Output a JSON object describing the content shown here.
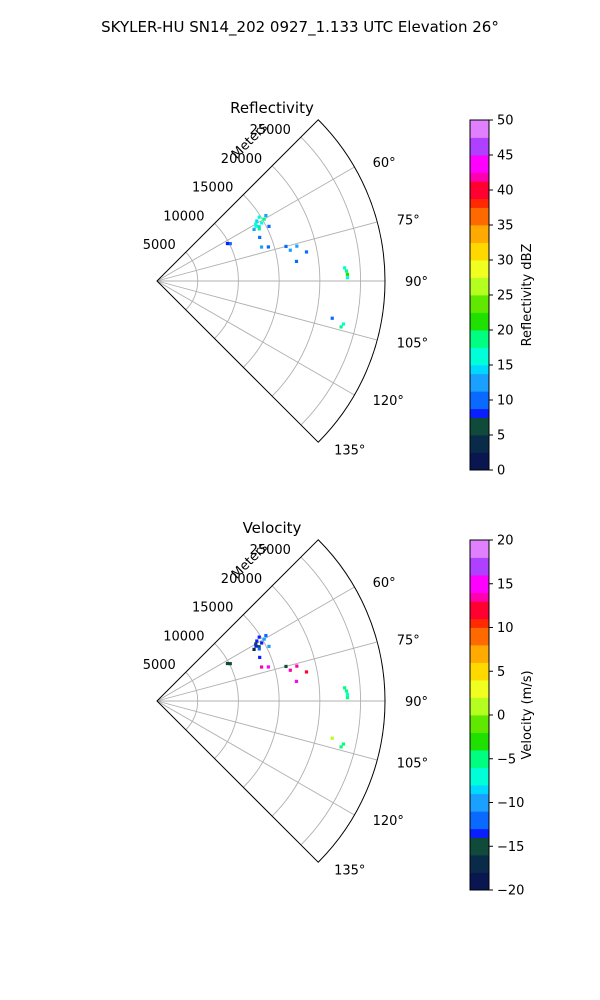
{
  "figure_title": "SKYLER-HU  SN14_202  0927_1.133 UTC Elevation 26°",
  "chart_data": [
    {
      "type": "scatter",
      "projection": "polar-sector",
      "title": "Reflectivity",
      "range_label": "Meters",
      "range_ticks": [
        5000,
        10000,
        15000,
        20000,
        25000
      ],
      "range_tick_labels": [
        "5000",
        "10000",
        "15000",
        "20000",
        "25000"
      ],
      "range_limit": [
        0,
        28000
      ],
      "azimuth_range_deg": [
        45,
        135
      ],
      "azimuth_ticks": [
        60,
        75,
        90,
        105,
        120,
        135
      ],
      "azimuth_tick_labels": [
        "60°",
        "75°",
        "90°",
        "105°",
        "120°",
        "135°"
      ],
      "grid": true,
      "colorbar": {
        "label": "Reflectivity dBZ",
        "range": [
          0,
          50
        ],
        "ticks": [
          0,
          5,
          10,
          15,
          20,
          25,
          30,
          35,
          40,
          45,
          50
        ],
        "tick_labels": [
          "0",
          "5",
          "10",
          "15",
          "20",
          "25",
          "30",
          "35",
          "40",
          "45",
          "50"
        ]
      },
      "points": [
        {
          "az": 58,
          "r": 14800,
          "v": 16
        },
        {
          "az": 59,
          "r": 14300,
          "v": 15
        },
        {
          "az": 60,
          "r": 14000,
          "v": 17
        },
        {
          "az": 61,
          "r": 13900,
          "v": 16
        },
        {
          "az": 62,
          "r": 14200,
          "v": 14
        },
        {
          "az": 63,
          "r": 14100,
          "v": 18
        },
        {
          "az": 60,
          "r": 15200,
          "v": 19
        },
        {
          "az": 61,
          "r": 14700,
          "v": 16
        },
        {
          "az": 62,
          "r": 13500,
          "v": 12
        },
        {
          "az": 59,
          "r": 15600,
          "v": 13
        },
        {
          "az": 64,
          "r": 15300,
          "v": 10
        },
        {
          "az": 67,
          "r": 13700,
          "v": 9
        },
        {
          "az": 63,
          "r": 10100,
          "v": 10
        },
        {
          "az": 62,
          "r": 9800,
          "v": 8
        },
        {
          "az": 72,
          "r": 13500,
          "v": 11
        },
        {
          "az": 73,
          "r": 14300,
          "v": 10
        },
        {
          "az": 75,
          "r": 16400,
          "v": 10
        },
        {
          "az": 76,
          "r": 17700,
          "v": 11
        },
        {
          "az": 77,
          "r": 16800,
          "v": 11
        },
        {
          "az": 79,
          "r": 18700,
          "v": 10
        },
        {
          "az": 82,
          "r": 17300,
          "v": 9
        },
        {
          "az": 86,
          "r": 23100,
          "v": 17
        },
        {
          "az": 87,
          "r": 23300,
          "v": 18
        },
        {
          "az": 88,
          "r": 23400,
          "v": 20
        },
        {
          "az": 89,
          "r": 23400,
          "v": 17
        },
        {
          "az": 102,
          "r": 22000,
          "v": 10
        },
        {
          "az": 103,
          "r": 23500,
          "v": 17
        },
        {
          "az": 104,
          "r": 23300,
          "v": 18
        }
      ]
    },
    {
      "type": "scatter",
      "projection": "polar-sector",
      "title": "Velocity",
      "range_label": "Meters",
      "range_ticks": [
        5000,
        10000,
        15000,
        20000,
        25000
      ],
      "range_tick_labels": [
        "5000",
        "10000",
        "15000",
        "20000",
        "25000"
      ],
      "range_limit": [
        0,
        28000
      ],
      "azimuth_range_deg": [
        45,
        135
      ],
      "azimuth_ticks": [
        60,
        75,
        90,
        105,
        120,
        135
      ],
      "azimuth_tick_labels": [
        "60°",
        "75°",
        "90°",
        "105°",
        "120°",
        "135°"
      ],
      "grid": true,
      "colorbar": {
        "label": "Velocity (m/s)",
        "range": [
          -20,
          20
        ],
        "ticks": [
          -20,
          -15,
          -10,
          -5,
          0,
          5,
          10,
          15,
          20
        ],
        "tick_labels": [
          "−20",
          "−15",
          "−10",
          "−5",
          "0",
          "5",
          "10",
          "15",
          "20"
        ]
      },
      "points": [
        {
          "az": 58,
          "r": 14800,
          "v": -13
        },
        {
          "az": 59,
          "r": 14300,
          "v": -14
        },
        {
          "az": 60,
          "r": 14000,
          "v": -15
        },
        {
          "az": 61,
          "r": 13900,
          "v": -13
        },
        {
          "az": 62,
          "r": 14200,
          "v": -16
        },
        {
          "az": 63,
          "r": 14100,
          "v": -12
        },
        {
          "az": 60,
          "r": 15200,
          "v": -11
        },
        {
          "az": 61,
          "r": 14700,
          "v": -14
        },
        {
          "az": 62,
          "r": 13500,
          "v": -17
        },
        {
          "az": 59,
          "r": 15600,
          "v": -12
        },
        {
          "az": 64,
          "r": 15300,
          "v": -10
        },
        {
          "az": 67,
          "r": 13700,
          "v": -14
        },
        {
          "az": 63,
          "r": 10100,
          "v": -16
        },
        {
          "az": 62,
          "r": 9800,
          "v": -15
        },
        {
          "az": 72,
          "r": 13500,
          "v": 14
        },
        {
          "az": 73,
          "r": 14300,
          "v": 15
        },
        {
          "az": 75,
          "r": 16400,
          "v": -16
        },
        {
          "az": 76,
          "r": 17700,
          "v": 13
        },
        {
          "az": 77,
          "r": 16800,
          "v": 14
        },
        {
          "az": 79,
          "r": 18700,
          "v": 12
        },
        {
          "az": 82,
          "r": 17300,
          "v": 15
        },
        {
          "az": 86,
          "r": 23100,
          "v": -6
        },
        {
          "az": 87,
          "r": 23300,
          "v": -5
        },
        {
          "az": 88,
          "r": 23400,
          "v": -7
        },
        {
          "az": 89,
          "r": 23400,
          "v": -6
        },
        {
          "az": 102,
          "r": 22000,
          "v": 1
        },
        {
          "az": 103,
          "r": 23500,
          "v": -5
        },
        {
          "az": 104,
          "r": 23300,
          "v": -6
        }
      ]
    }
  ]
}
